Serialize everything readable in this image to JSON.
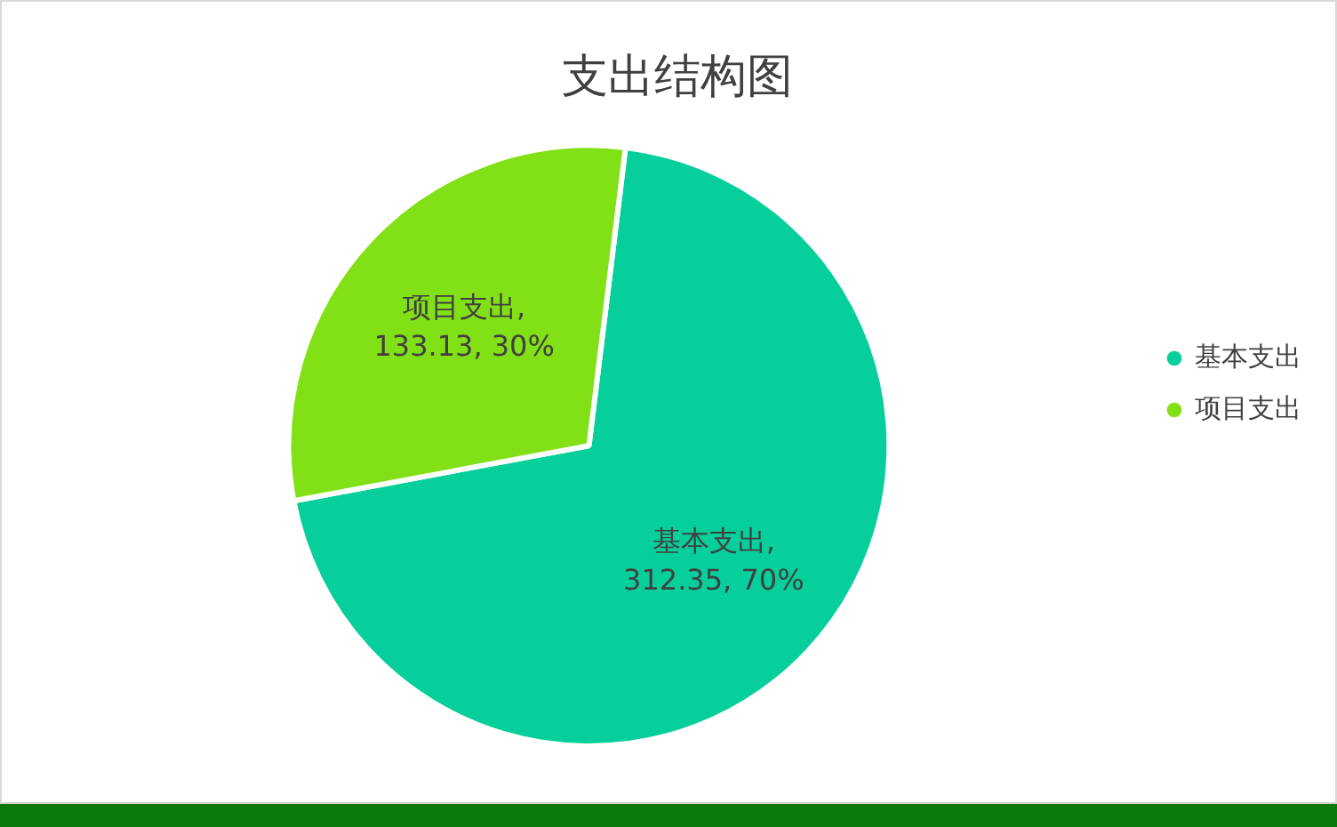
{
  "chart_data": {
    "type": "pie",
    "title": "支出结构图",
    "categories": [
      "基本支出",
      "项目支出"
    ],
    "values": [
      312.35,
      133.13
    ],
    "colors": [
      "#06cf9c",
      "#82e016"
    ],
    "value_labels": [
      "基本支出,\n312.35, 70%",
      "项目支出,\n133.13, 30%"
    ],
    "legend": "right"
  }
}
